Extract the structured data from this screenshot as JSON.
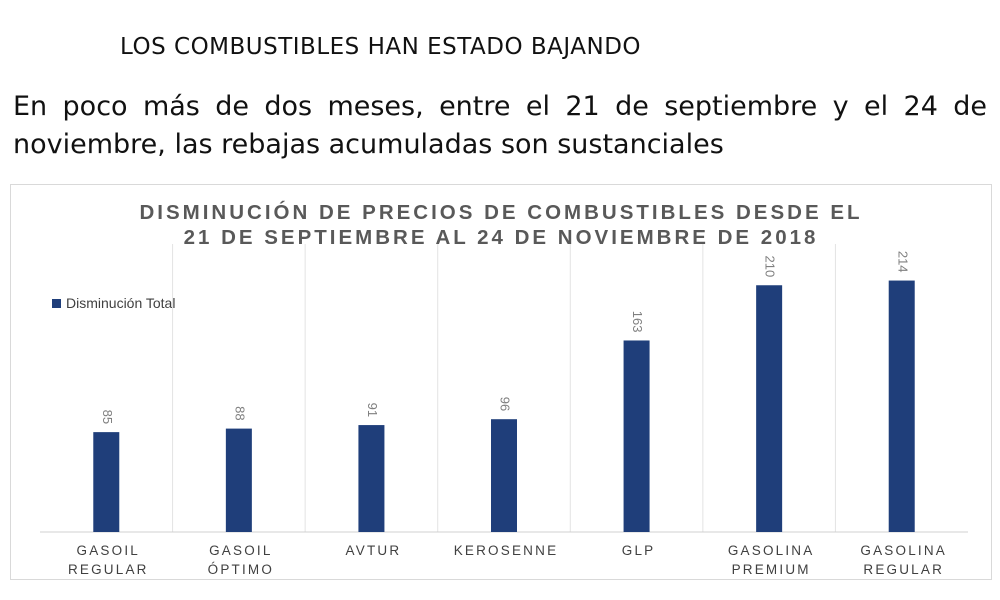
{
  "header": {
    "title": "LOS COMBUSTIBLES HAN ESTADO BAJANDO",
    "subtitle": "En poco más de dos meses, entre el 21 de septiembre y el 24 de noviembre, las rebajas acumuladas son sustanciales"
  },
  "chart_data": {
    "type": "bar",
    "title_lines": [
      "DISMINUCIÓN DE PRECIOS DE COMBUSTIBLES DESDE EL",
      "21 DE SEPTIEMBRE AL 24 DE NOVIEMBRE DE 2018"
    ],
    "categories": [
      [
        "GASOIL",
        "REGULAR"
      ],
      [
        "GASOIL",
        "ÓPTIMO"
      ],
      [
        "AVTUR"
      ],
      [
        "KEROSENNE"
      ],
      [
        "GLP"
      ],
      [
        "GASOLINA",
        "PREMIUM"
      ],
      [
        "GASOLINA",
        "REGULAR"
      ]
    ],
    "series": [
      {
        "name": "Disminución Total",
        "values": [
          85,
          88,
          91,
          96,
          163,
          210,
          214
        ],
        "color": "#1f3e7a"
      }
    ],
    "ylim": [
      0,
      240
    ],
    "grid": false,
    "legend_position": "left"
  }
}
